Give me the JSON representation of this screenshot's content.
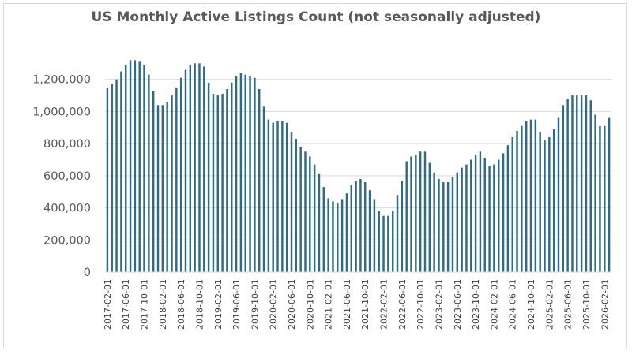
{
  "chart_data": {
    "type": "bar",
    "title": "US Monthly Active Listings Count (not seasonally adjusted)",
    "xlabel": "",
    "ylabel": "",
    "ylim": [
      0,
      1400000
    ],
    "yticks": [
      0,
      200000,
      400000,
      600000,
      800000,
      1000000,
      1200000
    ],
    "ytick_labels": [
      "0",
      "200,000",
      "400,000",
      "600,000",
      "800,000",
      "1,000,000",
      "1,200,000"
    ],
    "grid": true,
    "bar_color": "#2e6b85",
    "x": [
      "2017-02-01",
      "2017-03-01",
      "2017-04-01",
      "2017-05-01",
      "2017-06-01",
      "2017-07-01",
      "2017-08-01",
      "2017-09-01",
      "2017-10-01",
      "2017-11-01",
      "2017-12-01",
      "2018-01-01",
      "2018-02-01",
      "2018-03-01",
      "2018-04-01",
      "2018-05-01",
      "2018-06-01",
      "2018-07-01",
      "2018-08-01",
      "2018-09-01",
      "2018-10-01",
      "2018-11-01",
      "2018-12-01",
      "2019-01-01",
      "2019-02-01",
      "2019-03-01",
      "2019-04-01",
      "2019-05-01",
      "2019-06-01",
      "2019-07-01",
      "2019-08-01",
      "2019-09-01",
      "2019-10-01",
      "2019-11-01",
      "2019-12-01",
      "2020-01-01",
      "2020-02-01",
      "2020-03-01",
      "2020-04-01",
      "2020-05-01",
      "2020-06-01",
      "2020-07-01",
      "2020-08-01",
      "2020-09-01",
      "2020-10-01",
      "2020-11-01",
      "2020-12-01",
      "2021-01-01",
      "2021-02-01",
      "2021-03-01",
      "2021-04-01",
      "2021-05-01",
      "2021-06-01",
      "2021-07-01",
      "2021-08-01",
      "2021-09-01",
      "2021-10-01",
      "2021-11-01",
      "2021-12-01",
      "2022-01-01",
      "2022-02-01",
      "2022-03-01",
      "2022-04-01",
      "2022-05-01",
      "2022-06-01",
      "2022-07-01",
      "2022-08-01",
      "2022-09-01",
      "2022-10-01",
      "2022-11-01",
      "2022-12-01",
      "2023-01-01",
      "2023-02-01",
      "2023-03-01",
      "2023-04-01",
      "2023-05-01",
      "2023-06-01",
      "2023-07-01",
      "2023-08-01",
      "2023-09-01",
      "2023-10-01",
      "2023-11-01",
      "2023-12-01",
      "2024-01-01",
      "2024-02-01",
      "2024-03-01",
      "2024-04-01",
      "2024-05-01",
      "2024-06-01",
      "2024-07-01",
      "2024-08-01",
      "2024-09-01",
      "2024-10-01",
      "2024-11-01",
      "2024-12-01",
      "2025-01-01",
      "2025-02-01",
      "2025-03-01",
      "2025-04-01",
      "2025-05-01",
      "2025-06-01",
      "2025-07-01",
      "2025-08-01",
      "2025-09-01",
      "2025-10-01",
      "2025-11-01",
      "2025-12-01",
      "2026-01-01",
      "2026-02-01",
      "2026-03-01"
    ],
    "x_tick_labels": [
      "2017-02-01",
      "2017-06-01",
      "2017-10-01",
      "2018-02-01",
      "2018-06-01",
      "2018-10-01",
      "2019-02-01",
      "2019-06-01",
      "2019-10-01",
      "2020-02-01",
      "2020-06-01",
      "2020-10-01",
      "2021-02-01",
      "2021-06-01",
      "2021-10-01",
      "2022-02-01",
      "2022-06-01",
      "2022-10-01",
      "2023-02-01",
      "2023-06-01",
      "2023-10-01",
      "2024-02-01",
      "2024-06-01",
      "2024-10-01",
      "2025-02-01",
      "2025-06-01",
      "2025-10-01",
      "2026-02-01"
    ],
    "values": [
      1150000,
      1170000,
      1200000,
      1250000,
      1290000,
      1320000,
      1320000,
      1310000,
      1290000,
      1230000,
      1130000,
      1040000,
      1040000,
      1060000,
      1100000,
      1150000,
      1210000,
      1260000,
      1290000,
      1300000,
      1300000,
      1280000,
      1180000,
      1110000,
      1100000,
      1110000,
      1140000,
      1180000,
      1220000,
      1240000,
      1230000,
      1220000,
      1210000,
      1140000,
      1030000,
      950000,
      930000,
      940000,
      940000,
      930000,
      870000,
      830000,
      780000,
      750000,
      720000,
      670000,
      610000,
      530000,
      460000,
      440000,
      430000,
      450000,
      490000,
      540000,
      570000,
      580000,
      560000,
      510000,
      450000,
      380000,
      350000,
      350000,
      380000,
      480000,
      570000,
      690000,
      720000,
      730000,
      750000,
      750000,
      680000,
      620000,
      580000,
      560000,
      560000,
      590000,
      620000,
      650000,
      670000,
      700000,
      730000,
      750000,
      710000,
      660000,
      670000,
      700000,
      740000,
      790000,
      840000,
      880000,
      910000,
      940000,
      950000,
      950000,
      870000,
      820000,
      840000,
      890000,
      960000,
      1040000,
      1080000,
      1100000,
      1100000,
      1100000,
      1100000,
      1070000,
      980000,
      910000,
      910000,
      960000
    ]
  }
}
